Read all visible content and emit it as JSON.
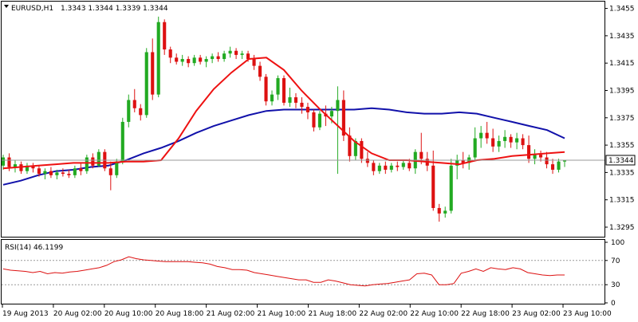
{
  "main_panel": {
    "symbol": "EURUSD,H1",
    "ohlc": "1.3343 1.3344 1.3339 1.3344",
    "last_price_label": "1.3344"
  },
  "rsi_panel": {
    "label": "RSI(14) 46.1199",
    "levels": [
      30,
      70
    ]
  },
  "colors": {
    "bull": "#22aa22",
    "bear": "#dd1111",
    "ma_fast": "#ee1111",
    "ma_slow": "#1111aa",
    "rsi": "#dd1111",
    "grid": "#999999"
  },
  "chart_data": [
    {
      "type": "candlestick",
      "title": "EURUSD,H1 1.3343 1.3344 1.3339 1.3344",
      "y_ticks": [
        "1.3455",
        "1.3435",
        "1.3415",
        "1.3395",
        "1.3375",
        "1.3355",
        "1.3335",
        "1.3315",
        "1.3295"
      ],
      "ylim": [
        1.3288,
        1.346
      ],
      "x_tick_labels": [
        "19 Aug 2013",
        "20 Aug 02:00",
        "20 Aug 10:00",
        "20 Aug 18:00",
        "21 Aug 02:00",
        "21 Aug 10:00",
        "21 Aug 18:00",
        "22 Aug 02:00",
        "22 Aug 10:00",
        "22 Aug 18:00",
        "23 Aug 02:00",
        "23 Aug 10:00"
      ],
      "candles": [
        [
          1.334,
          1.3348,
          1.3337,
          1.3346
        ],
        [
          1.3346,
          1.3349,
          1.3336,
          1.3339
        ],
        [
          1.3339,
          1.3344,
          1.3335,
          1.3341
        ],
        [
          1.3341,
          1.3343,
          1.3334,
          1.3336
        ],
        [
          1.3336,
          1.3342,
          1.3334,
          1.334
        ],
        [
          1.334,
          1.3342,
          1.3335,
          1.3338
        ],
        [
          1.3338,
          1.334,
          1.3332,
          1.3334
        ],
        [
          1.3334,
          1.3338,
          1.333,
          1.3336
        ],
        [
          1.3336,
          1.3339,
          1.3331,
          1.3333
        ],
        [
          1.3333,
          1.3337,
          1.333,
          1.3335
        ],
        [
          1.3335,
          1.3338,
          1.3332,
          1.3334
        ],
        [
          1.3334,
          1.3337,
          1.3331,
          1.3333
        ],
        [
          1.3333,
          1.334,
          1.3331,
          1.3338
        ],
        [
          1.3338,
          1.3342,
          1.3333,
          1.3336
        ],
        [
          1.3336,
          1.3348,
          1.3334,
          1.3346
        ],
        [
          1.3346,
          1.3349,
          1.3338,
          1.334
        ],
        [
          1.334,
          1.3352,
          1.3339,
          1.335
        ],
        [
          1.335,
          1.3352,
          1.3336,
          1.3338
        ],
        [
          1.3338,
          1.3343,
          1.3322,
          1.3333
        ],
        [
          1.3333,
          1.3345,
          1.3331,
          1.3343
        ],
        [
          1.3343,
          1.3375,
          1.3341,
          1.3372
        ],
        [
          1.3372,
          1.3392,
          1.3368,
          1.3388
        ],
        [
          1.3388,
          1.3396,
          1.3379,
          1.3382
        ],
        [
          1.3382,
          1.3385,
          1.3373,
          1.3377
        ],
        [
          1.3377,
          1.3426,
          1.3375,
          1.3423
        ],
        [
          1.3423,
          1.3433,
          1.3388,
          1.3392
        ],
        [
          1.3392,
          1.3449,
          1.339,
          1.3445
        ],
        [
          1.3445,
          1.3447,
          1.3421,
          1.3425
        ],
        [
          1.3425,
          1.3427,
          1.3415,
          1.3419
        ],
        [
          1.3419,
          1.3422,
          1.3414,
          1.3416
        ],
        [
          1.3416,
          1.3421,
          1.3413,
          1.3418
        ],
        [
          1.3418,
          1.342,
          1.3412,
          1.3415
        ],
        [
          1.3415,
          1.3421,
          1.3413,
          1.3419
        ],
        [
          1.3419,
          1.3421,
          1.3414,
          1.3416
        ],
        [
          1.3416,
          1.342,
          1.3412,
          1.3418
        ],
        [
          1.3418,
          1.3422,
          1.3415,
          1.342
        ],
        [
          1.342,
          1.3423,
          1.3416,
          1.3418
        ],
        [
          1.3418,
          1.3424,
          1.3416,
          1.3422
        ],
        [
          1.3422,
          1.3427,
          1.3419,
          1.3424
        ],
        [
          1.3424,
          1.3426,
          1.3418,
          1.3421
        ],
        [
          1.3421,
          1.3424,
          1.3418,
          1.3422
        ],
        [
          1.3422,
          1.3424,
          1.3416,
          1.3418
        ],
        [
          1.3418,
          1.3421,
          1.341,
          1.3413
        ],
        [
          1.3413,
          1.3416,
          1.3402,
          1.3405
        ],
        [
          1.3405,
          1.3407,
          1.3384,
          1.3387
        ],
        [
          1.3387,
          1.3395,
          1.3384,
          1.3392
        ],
        [
          1.3392,
          1.3406,
          1.3388,
          1.3404
        ],
        [
          1.3404,
          1.3406,
          1.3384,
          1.3386
        ],
        [
          1.3386,
          1.3397,
          1.3383,
          1.339
        ],
        [
          1.339,
          1.3393,
          1.3382,
          1.3386
        ],
        [
          1.3386,
          1.339,
          1.3378,
          1.3383
        ],
        [
          1.3383,
          1.3386,
          1.3374,
          1.3379
        ],
        [
          1.3379,
          1.3381,
          1.3365,
          1.3368
        ],
        [
          1.3368,
          1.338,
          1.3366,
          1.3378
        ],
        [
          1.3378,
          1.3384,
          1.3369,
          1.3376
        ],
        [
          1.3376,
          1.3383,
          1.3371,
          1.338
        ],
        [
          1.338,
          1.3398,
          1.3334,
          1.3388
        ],
        [
          1.3388,
          1.3395,
          1.3358,
          1.3362
        ],
        [
          1.3362,
          1.3368,
          1.3343,
          1.3347
        ],
        [
          1.3347,
          1.336,
          1.3344,
          1.3358
        ],
        [
          1.3358,
          1.336,
          1.3342,
          1.3345
        ],
        [
          1.3345,
          1.335,
          1.3339,
          1.3342
        ],
        [
          1.3342,
          1.3344,
          1.3333,
          1.3336
        ],
        [
          1.3336,
          1.3342,
          1.3334,
          1.334
        ],
        [
          1.334,
          1.3343,
          1.3334,
          1.3337
        ],
        [
          1.3337,
          1.3342,
          1.3335,
          1.334
        ],
        [
          1.334,
          1.3343,
          1.3336,
          1.3339
        ],
        [
          1.3339,
          1.3344,
          1.3337,
          1.3342
        ],
        [
          1.3342,
          1.3345,
          1.3336,
          1.3338
        ],
        [
          1.3338,
          1.3352,
          1.3334,
          1.335
        ],
        [
          1.335,
          1.3364,
          1.3341,
          1.3345
        ],
        [
          1.3345,
          1.335,
          1.3336,
          1.334
        ],
        [
          1.334,
          1.3351,
          1.3307,
          1.3309
        ],
        [
          1.3309,
          1.3312,
          1.3299,
          1.3305
        ],
        [
          1.3305,
          1.331,
          1.3302,
          1.3307
        ],
        [
          1.3307,
          1.3345,
          1.3305,
          1.334
        ],
        [
          1.334,
          1.3348,
          1.333,
          1.3344
        ],
        [
          1.3344,
          1.335,
          1.3338,
          1.3342
        ],
        [
          1.3342,
          1.3348,
          1.3337,
          1.3346
        ],
        [
          1.3346,
          1.3368,
          1.3344,
          1.336
        ],
        [
          1.336,
          1.3369,
          1.3353,
          1.3364
        ],
        [
          1.3364,
          1.3372,
          1.3356,
          1.336
        ],
        [
          1.336,
          1.3367,
          1.335,
          1.3354
        ],
        [
          1.3354,
          1.3362,
          1.335,
          1.3358
        ],
        [
          1.3358,
          1.3366,
          1.3353,
          1.3361
        ],
        [
          1.3361,
          1.3363,
          1.3353,
          1.3357
        ],
        [
          1.3357,
          1.3364,
          1.3352,
          1.336
        ],
        [
          1.336,
          1.3363,
          1.3352,
          1.3355
        ],
        [
          1.3355,
          1.3362,
          1.3342,
          1.3345
        ],
        [
          1.3345,
          1.3352,
          1.3341,
          1.3348
        ],
        [
          1.3348,
          1.3351,
          1.3343,
          1.3346
        ],
        [
          1.3346,
          1.335,
          1.3338,
          1.3341
        ],
        [
          1.3341,
          1.3345,
          1.3334,
          1.3337
        ],
        [
          1.3337,
          1.3345,
          1.3335,
          1.3343
        ],
        [
          1.3343,
          1.3344,
          1.3339,
          1.3344
        ]
      ],
      "series": [
        {
          "kind": "ma_fast",
          "values": [
            1.3338,
            1.3339,
            1.334,
            1.3341,
            1.3342,
            1.3342,
            1.3342,
            1.3343,
            1.3343,
            1.3344,
            1.336,
            1.338,
            1.3396,
            1.3408,
            1.3418,
            1.3419,
            1.341,
            1.3395,
            1.3382,
            1.337,
            1.3358,
            1.3349,
            1.3344,
            1.3344,
            1.3343,
            1.3342,
            1.3341,
            1.3344,
            1.3345,
            1.3347,
            1.3348,
            1.3349,
            1.335
          ]
        },
        {
          "kind": "ma_slow",
          "values": [
            1.3326,
            1.3329,
            1.3333,
            1.3336,
            1.3337,
            1.3339,
            1.334,
            1.3344,
            1.3349,
            1.3353,
            1.3358,
            1.3364,
            1.3369,
            1.3373,
            1.3377,
            1.338,
            1.3381,
            1.3381,
            1.3381,
            1.3381,
            1.3381,
            1.3382,
            1.3381,
            1.3379,
            1.3378,
            1.3378,
            1.3379,
            1.3378,
            1.3375,
            1.3372,
            1.3369,
            1.3366,
            1.336
          ]
        }
      ]
    },
    {
      "type": "line",
      "title": "RSI(14) 46.1199",
      "y_ticks": [
        "100",
        "70",
        "30",
        "0"
      ],
      "ylim": [
        0,
        100
      ],
      "values": [
        56,
        54,
        53,
        52,
        50,
        52,
        48,
        50,
        49,
        51,
        52,
        54,
        56,
        58,
        62,
        68,
        71,
        76,
        73,
        71,
        70,
        69,
        68,
        68,
        68,
        68,
        67,
        66,
        64,
        60,
        58,
        55,
        55,
        54,
        50,
        48,
        46,
        44,
        42,
        40,
        38,
        38,
        34,
        34,
        38,
        36,
        33,
        30,
        29,
        28,
        30,
        31,
        32,
        34,
        36,
        38,
        48,
        49,
        46,
        30,
        30,
        32,
        49,
        52,
        56,
        52,
        58,
        56,
        55,
        58,
        56,
        50,
        48,
        46,
        45,
        46,
        46
      ]
    }
  ]
}
